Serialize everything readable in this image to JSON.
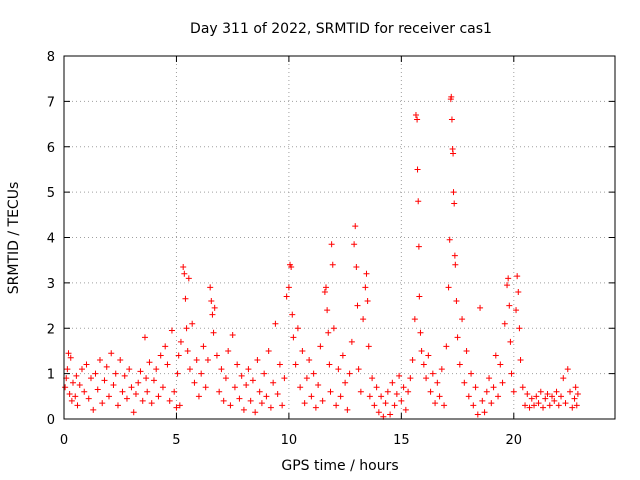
{
  "chart_data": {
    "type": "scatter",
    "title": "Day 311 of 2022, SRMTID for receiver cas1",
    "xlabel": "GPS time / hours",
    "ylabel": "SRMTID / TECUs",
    "xlim": [
      0,
      24.5
    ],
    "ylim": [
      0,
      8
    ],
    "xticks": [
      0,
      5,
      10,
      15,
      20
    ],
    "yticks": [
      0,
      1,
      2,
      3,
      4,
      5,
      6,
      7,
      8
    ],
    "grid": true,
    "marker": "plus",
    "series": [
      {
        "name": "SRMTID",
        "color": "#ff0000",
        "points": [
          [
            0.05,
            0.7
          ],
          [
            0.1,
            0.9
          ],
          [
            0.15,
            1.1
          ],
          [
            0.2,
            1.45
          ],
          [
            0.25,
            0.55
          ],
          [
            0.3,
            1.35
          ],
          [
            0.35,
            0.4
          ],
          [
            0.4,
            0.8
          ],
          [
            0.5,
            0.5
          ],
          [
            0.55,
            0.95
          ],
          [
            0.6,
            0.3
          ],
          [
            0.7,
            0.75
          ],
          [
            0.8,
            1.1
          ],
          [
            0.9,
            0.6
          ],
          [
            1.0,
            1.2
          ],
          [
            1.1,
            0.45
          ],
          [
            1.2,
            0.9
          ],
          [
            1.3,
            0.2
          ],
          [
            1.4,
            1.0
          ],
          [
            1.5,
            0.65
          ],
          [
            1.6,
            1.3
          ],
          [
            1.7,
            0.35
          ],
          [
            1.8,
            0.85
          ],
          [
            1.9,
            1.15
          ],
          [
            2.0,
            0.5
          ],
          [
            2.1,
            1.45
          ],
          [
            2.2,
            0.75
          ],
          [
            2.3,
            1.0
          ],
          [
            2.4,
            0.3
          ],
          [
            2.5,
            1.3
          ],
          [
            2.6,
            0.6
          ],
          [
            2.7,
            0.95
          ],
          [
            2.8,
            0.45
          ],
          [
            2.9,
            1.1
          ],
          [
            3.0,
            0.7
          ],
          [
            3.1,
            0.15
          ],
          [
            3.2,
            0.55
          ],
          [
            3.3,
            0.8
          ],
          [
            3.4,
            1.05
          ],
          [
            3.5,
            0.4
          ],
          [
            3.6,
            1.8
          ],
          [
            3.65,
            0.9
          ],
          [
            3.7,
            0.6
          ],
          [
            3.8,
            1.25
          ],
          [
            3.9,
            0.35
          ],
          [
            4.0,
            0.85
          ],
          [
            4.1,
            1.1
          ],
          [
            4.2,
            0.5
          ],
          [
            4.3,
            1.4
          ],
          [
            4.4,
            0.7
          ],
          [
            4.5,
            1.6
          ],
          [
            4.6,
            1.2
          ],
          [
            4.7,
            0.4
          ],
          [
            4.8,
            1.95
          ],
          [
            4.9,
            0.6
          ],
          [
            5.0,
            0.25
          ],
          [
            5.05,
            1.0
          ],
          [
            5.1,
            1.4
          ],
          [
            5.15,
            0.3
          ],
          [
            5.2,
            1.7
          ],
          [
            5.3,
            3.35
          ],
          [
            5.35,
            3.2
          ],
          [
            5.4,
            2.65
          ],
          [
            5.45,
            2.0
          ],
          [
            5.5,
            1.5
          ],
          [
            5.55,
            3.1
          ],
          [
            5.6,
            1.1
          ],
          [
            5.7,
            2.1
          ],
          [
            5.8,
            0.8
          ],
          [
            5.9,
            1.3
          ],
          [
            6.0,
            0.5
          ],
          [
            6.1,
            1.0
          ],
          [
            6.2,
            1.6
          ],
          [
            6.3,
            0.7
          ],
          [
            6.4,
            1.3
          ],
          [
            6.5,
            2.9
          ],
          [
            6.55,
            2.6
          ],
          [
            6.6,
            2.3
          ],
          [
            6.65,
            1.9
          ],
          [
            6.7,
            2.45
          ],
          [
            6.8,
            1.4
          ],
          [
            6.9,
            0.6
          ],
          [
            7.0,
            1.1
          ],
          [
            7.1,
            0.4
          ],
          [
            7.2,
            0.9
          ],
          [
            7.3,
            1.5
          ],
          [
            7.4,
            0.3
          ],
          [
            7.5,
            1.85
          ],
          [
            7.6,
            0.7
          ],
          [
            7.7,
            1.2
          ],
          [
            7.8,
            0.45
          ],
          [
            7.9,
            0.95
          ],
          [
            8.0,
            0.2
          ],
          [
            8.1,
            0.75
          ],
          [
            8.2,
            1.1
          ],
          [
            8.3,
            0.4
          ],
          [
            8.4,
            0.85
          ],
          [
            8.5,
            0.15
          ],
          [
            8.6,
            1.3
          ],
          [
            8.7,
            0.6
          ],
          [
            8.8,
            0.35
          ],
          [
            8.9,
            1.0
          ],
          [
            9.0,
            0.5
          ],
          [
            9.1,
            1.5
          ],
          [
            9.2,
            0.25
          ],
          [
            9.3,
            0.8
          ],
          [
            9.4,
            2.1
          ],
          [
            9.5,
            0.55
          ],
          [
            9.6,
            1.2
          ],
          [
            9.7,
            0.3
          ],
          [
            9.8,
            0.9
          ],
          [
            9.9,
            2.7
          ],
          [
            10.0,
            2.9
          ],
          [
            10.05,
            3.4
          ],
          [
            10.1,
            3.35
          ],
          [
            10.15,
            2.3
          ],
          [
            10.2,
            1.8
          ],
          [
            10.3,
            1.2
          ],
          [
            10.4,
            2.0
          ],
          [
            10.5,
            0.7
          ],
          [
            10.6,
            1.5
          ],
          [
            10.7,
            0.35
          ],
          [
            10.8,
            0.9
          ],
          [
            10.9,
            1.3
          ],
          [
            11.0,
            0.5
          ],
          [
            11.1,
            1.0
          ],
          [
            11.2,
            0.25
          ],
          [
            11.3,
            0.75
          ],
          [
            11.4,
            1.6
          ],
          [
            11.5,
            0.4
          ],
          [
            11.6,
            2.8
          ],
          [
            11.65,
            2.9
          ],
          [
            11.7,
            2.4
          ],
          [
            11.75,
            1.9
          ],
          [
            11.8,
            1.2
          ],
          [
            11.85,
            0.6
          ],
          [
            11.9,
            3.85
          ],
          [
            11.95,
            3.4
          ],
          [
            12.0,
            2.0
          ],
          [
            12.1,
            0.3
          ],
          [
            12.2,
            1.1
          ],
          [
            12.3,
            0.5
          ],
          [
            12.4,
            1.4
          ],
          [
            12.5,
            0.8
          ],
          [
            12.6,
            0.2
          ],
          [
            12.7,
            1.0
          ],
          [
            12.8,
            1.7
          ],
          [
            12.9,
            3.85
          ],
          [
            12.95,
            4.25
          ],
          [
            13.0,
            3.35
          ],
          [
            13.05,
            2.5
          ],
          [
            13.1,
            1.1
          ],
          [
            13.2,
            0.6
          ],
          [
            13.3,
            2.2
          ],
          [
            13.4,
            2.9
          ],
          [
            13.45,
            3.2
          ],
          [
            13.5,
            2.6
          ],
          [
            13.55,
            1.6
          ],
          [
            13.6,
            0.5
          ],
          [
            13.7,
            0.9
          ],
          [
            13.8,
            0.3
          ],
          [
            13.9,
            0.7
          ],
          [
            14.0,
            0.15
          ],
          [
            14.1,
            0.5
          ],
          [
            14.2,
            0.05
          ],
          [
            14.3,
            0.35
          ],
          [
            14.4,
            0.6
          ],
          [
            14.5,
            0.1
          ],
          [
            14.6,
            0.8
          ],
          [
            14.7,
            0.3
          ],
          [
            14.8,
            0.55
          ],
          [
            14.9,
            0.95
          ],
          [
            15.0,
            0.4
          ],
          [
            15.1,
            0.7
          ],
          [
            15.2,
            0.2
          ],
          [
            15.3,
            0.6
          ],
          [
            15.4,
            0.9
          ],
          [
            15.5,
            1.3
          ],
          [
            15.6,
            2.2
          ],
          [
            15.65,
            6.7
          ],
          [
            15.7,
            6.6
          ],
          [
            15.72,
            5.5
          ],
          [
            15.75,
            4.8
          ],
          [
            15.78,
            3.8
          ],
          [
            15.8,
            2.7
          ],
          [
            15.85,
            1.9
          ],
          [
            15.9,
            1.5
          ],
          [
            16.0,
            1.2
          ],
          [
            16.1,
            0.9
          ],
          [
            16.2,
            1.4
          ],
          [
            16.3,
            0.6
          ],
          [
            16.4,
            1.0
          ],
          [
            16.5,
            0.35
          ],
          [
            16.6,
            0.8
          ],
          [
            16.7,
            0.5
          ],
          [
            16.8,
            1.1
          ],
          [
            16.9,
            0.3
          ],
          [
            17.0,
            1.6
          ],
          [
            17.1,
            2.9
          ],
          [
            17.15,
            3.95
          ],
          [
            17.2,
            7.05
          ],
          [
            17.22,
            7.1
          ],
          [
            17.25,
            6.6
          ],
          [
            17.28,
            5.95
          ],
          [
            17.3,
            5.85
          ],
          [
            17.32,
            5.0
          ],
          [
            17.35,
            4.75
          ],
          [
            17.38,
            3.6
          ],
          [
            17.4,
            3.4
          ],
          [
            17.45,
            2.6
          ],
          [
            17.5,
            1.8
          ],
          [
            17.6,
            1.2
          ],
          [
            17.7,
            2.2
          ],
          [
            17.8,
            0.8
          ],
          [
            17.9,
            1.5
          ],
          [
            18.0,
            0.5
          ],
          [
            18.1,
            1.0
          ],
          [
            18.2,
            0.3
          ],
          [
            18.3,
            0.7
          ],
          [
            18.4,
            0.1
          ],
          [
            18.5,
            2.45
          ],
          [
            18.6,
            0.4
          ],
          [
            18.7,
            0.15
          ],
          [
            18.8,
            0.6
          ],
          [
            18.9,
            0.9
          ],
          [
            19.0,
            0.35
          ],
          [
            19.1,
            0.7
          ],
          [
            19.2,
            1.4
          ],
          [
            19.3,
            0.5
          ],
          [
            19.4,
            1.2
          ],
          [
            19.5,
            0.8
          ],
          [
            19.6,
            2.1
          ],
          [
            19.7,
            2.95
          ],
          [
            19.75,
            3.1
          ],
          [
            19.8,
            2.5
          ],
          [
            19.85,
            1.7
          ],
          [
            19.9,
            1.0
          ],
          [
            20.0,
            0.6
          ],
          [
            20.1,
            2.4
          ],
          [
            20.15,
            3.15
          ],
          [
            20.2,
            2.8
          ],
          [
            20.25,
            2.0
          ],
          [
            20.3,
            1.3
          ],
          [
            20.4,
            0.7
          ],
          [
            20.5,
            0.3
          ],
          [
            20.6,
            0.55
          ],
          [
            20.7,
            0.25
          ],
          [
            20.8,
            0.45
          ],
          [
            20.9,
            0.3
          ],
          [
            21.0,
            0.5
          ],
          [
            21.1,
            0.35
          ],
          [
            21.2,
            0.6
          ],
          [
            21.3,
            0.25
          ],
          [
            21.4,
            0.45
          ],
          [
            21.5,
            0.55
          ],
          [
            21.6,
            0.3
          ],
          [
            21.7,
            0.5
          ],
          [
            21.8,
            0.4
          ],
          [
            21.9,
            0.6
          ],
          [
            22.0,
            0.3
          ],
          [
            22.1,
            0.5
          ],
          [
            22.2,
            0.9
          ],
          [
            22.3,
            0.35
          ],
          [
            22.4,
            1.1
          ],
          [
            22.5,
            0.6
          ],
          [
            22.6,
            0.25
          ],
          [
            22.7,
            0.45
          ],
          [
            22.75,
            0.7
          ],
          [
            22.8,
            0.3
          ],
          [
            22.85,
            0.55
          ]
        ]
      }
    ]
  }
}
